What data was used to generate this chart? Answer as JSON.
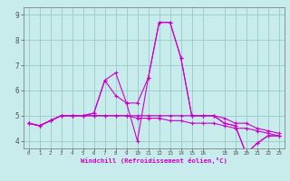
{
  "xlabel": "Windchill (Refroidissement éolien,°C)",
  "background_color": "#c8ecec",
  "grid_color": "#9dcece",
  "line_color": "#cc00cc",
  "xlim": [
    -0.5,
    23.5
  ],
  "ylim": [
    3.7,
    9.3
  ],
  "xticks": [
    0,
    1,
    2,
    3,
    4,
    5,
    6,
    7,
    8,
    9,
    10,
    11,
    12,
    13,
    14,
    15,
    16,
    18,
    19,
    20,
    21,
    22,
    23
  ],
  "yticks": [
    4,
    5,
    6,
    7,
    8,
    9
  ],
  "series": [
    [
      4.7,
      4.6,
      4.8,
      5.0,
      5.0,
      5.0,
      5.1,
      6.4,
      5.8,
      5.5,
      4.0,
      6.5,
      8.7,
      8.7,
      7.3,
      5.0,
      5.0,
      5.0,
      4.7,
      4.6,
      3.5,
      3.9,
      4.2,
      4.2
    ],
    [
      4.7,
      4.6,
      4.8,
      5.0,
      5.0,
      5.0,
      5.1,
      6.4,
      6.7,
      5.5,
      5.5,
      6.5,
      8.7,
      8.7,
      7.3,
      5.0,
      5.0,
      5.0,
      4.7,
      4.6,
      3.5,
      3.9,
      4.2,
      4.2
    ],
    [
      4.7,
      4.6,
      4.8,
      5.0,
      5.0,
      5.0,
      5.0,
      5.0,
      5.0,
      5.0,
      5.0,
      5.0,
      5.0,
      5.0,
      5.0,
      5.0,
      5.0,
      5.0,
      4.9,
      4.7,
      4.7,
      4.5,
      4.4,
      4.3
    ],
    [
      4.7,
      4.6,
      4.8,
      5.0,
      5.0,
      5.0,
      5.0,
      5.0,
      5.0,
      5.0,
      4.9,
      4.9,
      4.9,
      4.8,
      4.8,
      4.7,
      4.7,
      4.7,
      4.6,
      4.5,
      4.5,
      4.4,
      4.3,
      4.2
    ]
  ]
}
